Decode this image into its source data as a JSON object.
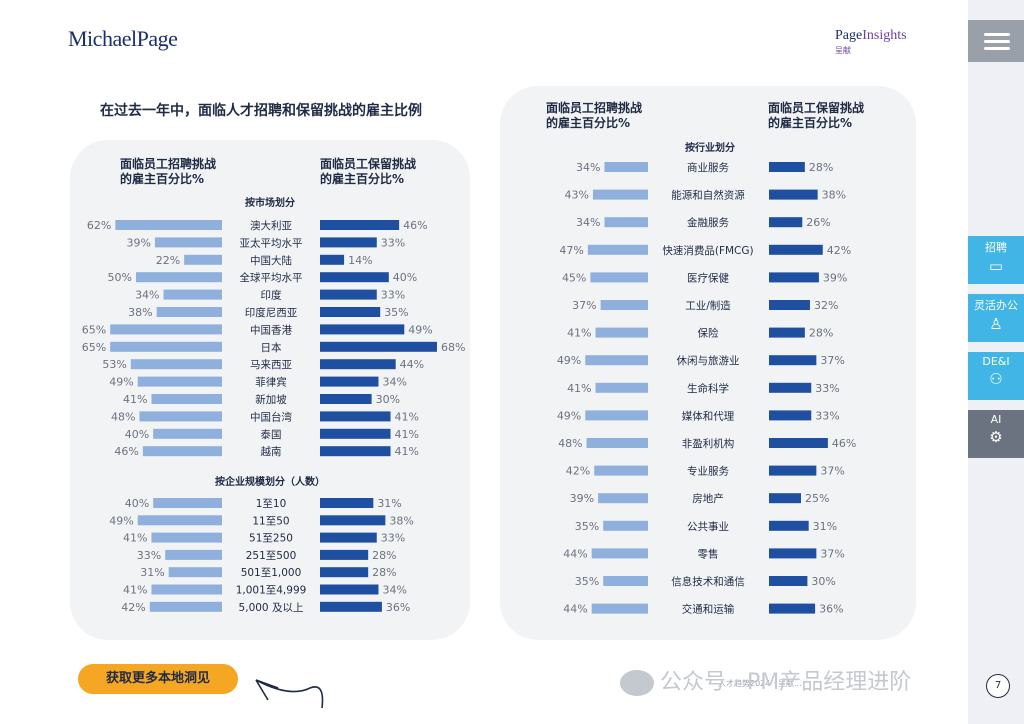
{
  "header": {
    "logo_left": "MichaelPage",
    "logo_right_a": "Page",
    "logo_right_b": "Insights",
    "logo_right_sub": "呈献"
  },
  "sidebar": {
    "tabs": [
      {
        "label": "招聘",
        "icon": "recruit-icon",
        "color": "#41b6e6"
      },
      {
        "label": "灵活办公",
        "icon": "flex-work-icon",
        "color": "#41b6e6"
      },
      {
        "label": "DE&I",
        "icon": "dei-icon",
        "color": "#41b6e6"
      },
      {
        "label": "AI",
        "icon": "ai-icon",
        "color": "#6b7280"
      }
    ]
  },
  "left_title": "在过去一年中，面临人才招聘和保留挑战的雇主比例",
  "left_panel": {
    "hdr_recruit": "面临员工招聘挑战\n的雇主百分比%",
    "hdr_retain": "面临员工保留挑战\n的雇主百分比%"
  },
  "right_panel": {
    "hdr_recruit": "面临员工招聘挑战\n的雇主百分比%",
    "hdr_retain": "面临员工保留挑战\n的雇主百分比%"
  },
  "cta": {
    "label": "获取更多本地洞见"
  },
  "footer": {
    "text": "人才趋势2024 · 呈献...",
    "watermark": "公众号 · PM产品经理进阶",
    "page_number": "7"
  },
  "colors": {
    "recruit": "#8fb0dd",
    "retain": "#1e4fa0"
  },
  "chart_data": [
    {
      "type": "bar",
      "group": "按市场划分",
      "categories": [
        "澳大利亚",
        "亚太平均水平",
        "中国大陆",
        "全球平均水平",
        "印度",
        "印度尼西亚",
        "中国香港",
        "日本",
        "马来西亚",
        "菲律宾",
        "新加坡",
        "中国台湾",
        "泰国",
        "越南"
      ],
      "series": [
        {
          "name": "面临员工招聘挑战的雇主百分比%",
          "values": [
            62,
            39,
            22,
            50,
            34,
            38,
            65,
            65,
            53,
            49,
            41,
            48,
            40,
            46
          ]
        },
        {
          "name": "面临员工保留挑战的雇主百分比%",
          "values": [
            46,
            33,
            14,
            40,
            33,
            35,
            49,
            68,
            44,
            34,
            30,
            41,
            41,
            41
          ]
        }
      ],
      "ylim": [
        0,
        100
      ]
    },
    {
      "type": "bar",
      "group": "按企业规模划分（人数）",
      "categories": [
        "1至10",
        "11至50",
        "51至250",
        "251至500",
        "501至1,000",
        "1,001至4,999",
        "5,000 及以上"
      ],
      "series": [
        {
          "name": "面临员工招聘挑战的雇主百分比%",
          "values": [
            40,
            49,
            41,
            33,
            31,
            41,
            42
          ]
        },
        {
          "name": "面临员工保留挑战的雇主百分比%",
          "values": [
            31,
            38,
            33,
            28,
            28,
            34,
            36
          ]
        }
      ],
      "ylim": [
        0,
        100
      ]
    },
    {
      "type": "bar",
      "group": "按行业划分",
      "categories": [
        "商业服务",
        "能源和自然资源",
        "金融服务",
        "快速消费品(FMCG)",
        "医疗保健",
        "工业/制造",
        "保险",
        "休闲与旅游业",
        "生命科学",
        "媒体和代理",
        "非盈利机构",
        "专业服务",
        "房地产",
        "公共事业",
        "零售",
        "信息技术和通信",
        "交通和运输"
      ],
      "series": [
        {
          "name": "面临员工招聘挑战的雇主百分比%",
          "values": [
            34,
            43,
            34,
            47,
            45,
            37,
            41,
            49,
            41,
            49,
            48,
            42,
            39,
            35,
            44,
            35,
            44
          ]
        },
        {
          "name": "面临员工保留挑战的雇主百分比%",
          "values": [
            28,
            38,
            26,
            42,
            39,
            32,
            28,
            37,
            33,
            33,
            46,
            37,
            25,
            31,
            37,
            30,
            36
          ]
        }
      ],
      "ylim": [
        0,
        100
      ]
    }
  ]
}
